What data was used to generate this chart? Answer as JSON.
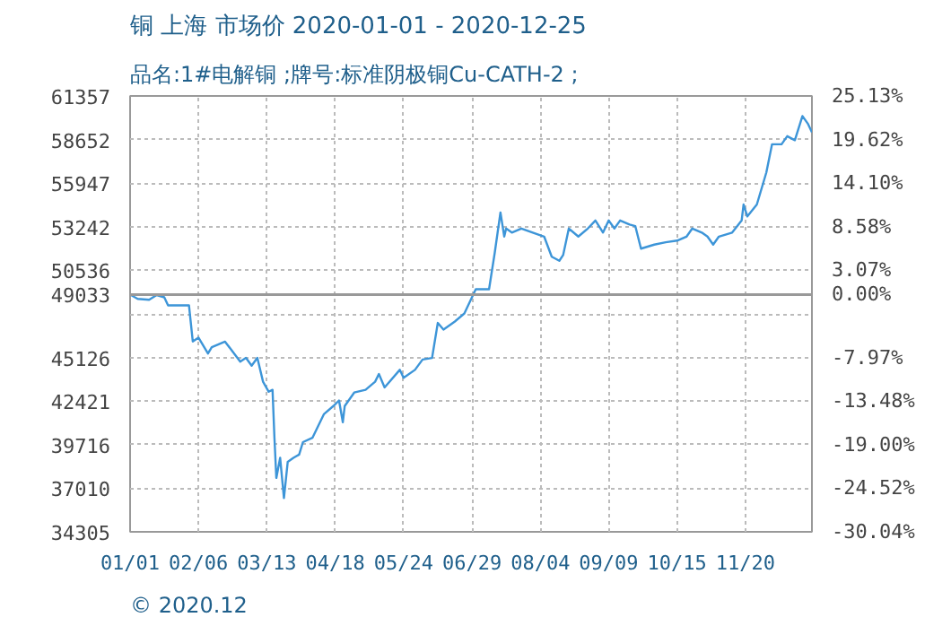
{
  "chart_data": {
    "type": "line",
    "title": "铜 上海 市场价 2020-01-01 - 2020-12-25",
    "subtitle": "品名:1#电解铜 ;牌号:标准阴极铜Cu-CATH-2 ;",
    "annotations": [
      "© 2020.12"
    ],
    "xlim": [
      "2020-01-01",
      "2020-12-25"
    ],
    "xticks": [
      {
        "value": "2020-01-01",
        "label": "01/01"
      },
      {
        "value": "2020-02-06",
        "label": "02/06"
      },
      {
        "value": "2020-03-13",
        "label": "03/13"
      },
      {
        "value": "2020-04-18",
        "label": "04/18"
      },
      {
        "value": "2020-05-24",
        "label": "05/24"
      },
      {
        "value": "2020-06-29",
        "label": "06/29"
      },
      {
        "value": "2020-08-04",
        "label": "08/04"
      },
      {
        "value": "2020-09-09",
        "label": "09/09"
      },
      {
        "value": "2020-10-15",
        "label": "10/15"
      },
      {
        "value": "2020-11-20",
        "label": "11/20"
      }
    ],
    "ylim": [
      34305,
      61357
    ],
    "yticks": [
      61357,
      58652,
      55947,
      53242,
      50536,
      49033,
      {
        "value": 47831,
        "label": null
      },
      45126,
      42421,
      39716,
      37010,
      34305
    ],
    "y2lim": [
      -30.04,
      25.13
    ],
    "y2ticks": [
      {
        "value": 25.13,
        "label": "25.13%"
      },
      {
        "value": 19.62,
        "label": "19.62%"
      },
      {
        "value": 14.1,
        "label": "14.10%"
      },
      {
        "value": 8.58,
        "label": "8.58%"
      },
      {
        "value": 3.07,
        "label": "3.07%"
      },
      {
        "value": 0.0,
        "label": "0.00%"
      },
      {
        "value": -7.97,
        "label": "-7.97%"
      },
      {
        "value": -13.48,
        "label": "-13.48%"
      },
      {
        "value": -19.0,
        "label": "-19.00%"
      },
      {
        "value": -24.52,
        "label": "-24.52%"
      },
      {
        "value": -30.04,
        "label": "-30.04%"
      }
    ],
    "ref_lines": [
      {
        "axis": "y",
        "value": 49033,
        "color": "#999999"
      }
    ],
    "grid": true,
    "line_style": "solid",
    "series": [
      {
        "color": "#3d95d8",
        "x": [
          "2020-01-01",
          "2020-01-05",
          "2020-01-11",
          "2020-01-15",
          "2020-01-19",
          "2020-01-21",
          "2020-02-01",
          "2020-02-03",
          "2020-02-06",
          "2020-02-11",
          "2020-02-13",
          "2020-02-20",
          "2020-02-28",
          "2020-03-02",
          "2020-03-05",
          "2020-03-08",
          "2020-03-11",
          "2020-03-14",
          "2020-03-16",
          "2020-03-17",
          "2020-03-18",
          "2020-03-20",
          "2020-03-22",
          "2020-03-24",
          "2020-03-27",
          "2020-03-30",
          "2020-04-01",
          "2020-04-06",
          "2020-04-12",
          "2020-04-17",
          "2020-04-20",
          "2020-04-22",
          "2020-04-23",
          "2020-04-28",
          "2020-05-04",
          "2020-05-09",
          "2020-05-11",
          "2020-05-14",
          "2020-05-22",
          "2020-05-24",
          "2020-05-30",
          "2020-06-03",
          "2020-06-08",
          "2020-06-11",
          "2020-06-14",
          "2020-06-20",
          "2020-06-25",
          "2020-06-28",
          "2020-07-01",
          "2020-07-08",
          "2020-07-11",
          "2020-07-14",
          "2020-07-16",
          "2020-07-17",
          "2020-07-20",
          "2020-07-25",
          "2020-07-31",
          "2020-08-06",
          "2020-08-10",
          "2020-08-14",
          "2020-08-16",
          "2020-08-19",
          "2020-08-24",
          "2020-08-29",
          "2020-09-02",
          "2020-09-06",
          "2020-09-09",
          "2020-09-12",
          "2020-09-15",
          "2020-09-20",
          "2020-09-23",
          "2020-09-26",
          "2020-10-03",
          "2020-10-09",
          "2020-10-15",
          "2020-10-20",
          "2020-10-23",
          "2020-10-28",
          "2020-10-31",
          "2020-11-03",
          "2020-11-06",
          "2020-11-13",
          "2020-11-18",
          "2020-11-19",
          "2020-11-21",
          "2020-11-26",
          "2020-12-01",
          "2020-12-04",
          "2020-12-09",
          "2020-12-12",
          "2020-12-16",
          "2020-12-20",
          "2020-12-23",
          "2020-12-25"
        ],
        "values": [
          49030,
          48760,
          48710,
          49000,
          48860,
          48360,
          48360,
          46120,
          46360,
          45370,
          45770,
          46110,
          44870,
          45100,
          44620,
          45100,
          43620,
          43000,
          43120,
          40140,
          37650,
          38900,
          36400,
          38650,
          38900,
          39100,
          39870,
          40140,
          41600,
          42110,
          42460,
          41110,
          42110,
          42950,
          43120,
          43620,
          44100,
          43270,
          44360,
          43860,
          44360,
          45000,
          45100,
          47270,
          46860,
          47360,
          47860,
          48610,
          49360,
          49360,
          51630,
          54130,
          52630,
          53130,
          52880,
          53130,
          52880,
          52630,
          51380,
          51130,
          51480,
          53130,
          52630,
          53130,
          53630,
          52880,
          53630,
          53130,
          53630,
          53380,
          53280,
          51880,
          52130,
          52280,
          52380,
          52630,
          53130,
          52880,
          52630,
          52130,
          52630,
          52880,
          53630,
          54620,
          53880,
          54620,
          56610,
          58360,
          58360,
          58860,
          58610,
          60110,
          59610,
          59100
        ]
      }
    ]
  }
}
